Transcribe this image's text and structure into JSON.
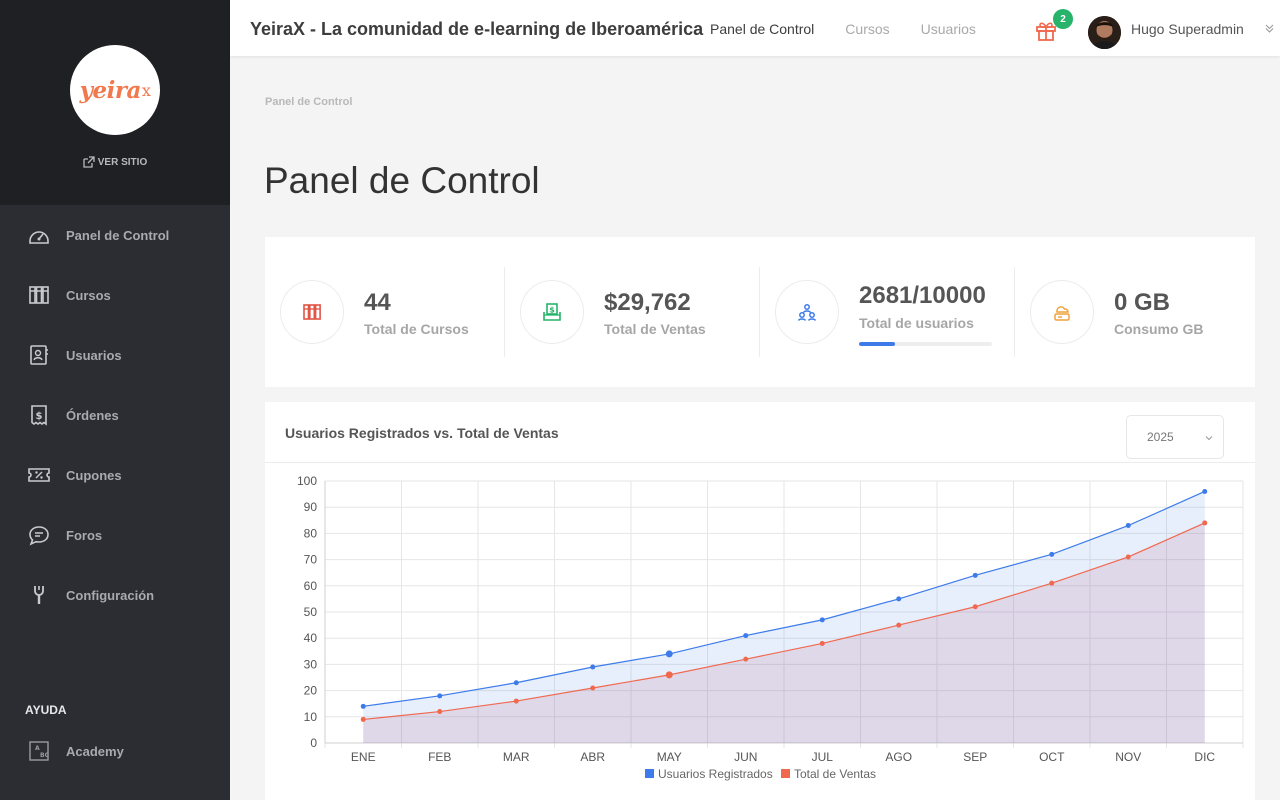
{
  "sidebar": {
    "logo_text": "yeira",
    "logo_mark": "x",
    "ver_sitio": "VER SITIO",
    "items": [
      {
        "label": "Panel de Control",
        "icon": "speedometer-icon"
      },
      {
        "label": "Cursos",
        "icon": "books-icon"
      },
      {
        "label": "Usuarios",
        "icon": "user-card-icon"
      },
      {
        "label": "Órdenes",
        "icon": "receipt-icon"
      },
      {
        "label": "Cupones",
        "icon": "coupon-icon"
      },
      {
        "label": "Foros",
        "icon": "chat-icon"
      },
      {
        "label": "Configuración",
        "icon": "wrench-icon"
      }
    ],
    "help_title": "AYUDA",
    "help_items": [
      {
        "label": "Academy",
        "icon": "academy-icon"
      }
    ]
  },
  "header": {
    "title": "YeiraX - La comunidad de e-learning de Iberoamérica",
    "nav": [
      {
        "label": "Panel de Control",
        "active": true
      },
      {
        "label": "Cursos",
        "active": false
      },
      {
        "label": "Usuarios",
        "active": false
      }
    ],
    "gift_badge": "2",
    "user_name": "Hugo Superadmin"
  },
  "breadcrumb": "Panel de Control",
  "page_title": "Panel de Control",
  "stats": [
    {
      "value": "44",
      "label": "Total de Cursos",
      "icon": "books-icon",
      "color": "#e05545"
    },
    {
      "value": "$29,762",
      "label": "Total de Ventas",
      "icon": "money-icon",
      "color": "#27b36a"
    },
    {
      "value": "2681/10000",
      "label": "Total de usuarios",
      "icon": "users-icon",
      "color": "#3d7bea",
      "progress": 0.2681
    },
    {
      "value": "0 GB",
      "label": "Consumo GB",
      "icon": "cloud-storage-icon",
      "color": "#f0a03a"
    }
  ],
  "chart_card": {
    "title": "Usuarios Registrados vs. Total de Ventas",
    "year": "2025"
  },
  "chart_data": {
    "type": "area",
    "categories": [
      "ENE",
      "FEB",
      "MAR",
      "ABR",
      "MAY",
      "JUN",
      "JUL",
      "AGO",
      "SEP",
      "OCT",
      "NOV",
      "DIC"
    ],
    "series": [
      {
        "name": "Usuarios Registrados",
        "values": [
          14,
          18,
          23,
          29,
          34,
          41,
          47,
          55,
          64,
          72,
          83,
          96
        ],
        "color": "#3d7bea"
      },
      {
        "name": "Total de Ventas",
        "values": [
          9,
          12,
          16,
          21,
          26,
          32,
          38,
          45,
          52,
          61,
          71,
          84
        ],
        "color": "#f0694f"
      }
    ],
    "ylim": [
      0,
      100
    ],
    "yticks": [
      0,
      10,
      20,
      30,
      40,
      50,
      60,
      70,
      80,
      90,
      100
    ],
    "grid": true,
    "legend": "bottom"
  }
}
